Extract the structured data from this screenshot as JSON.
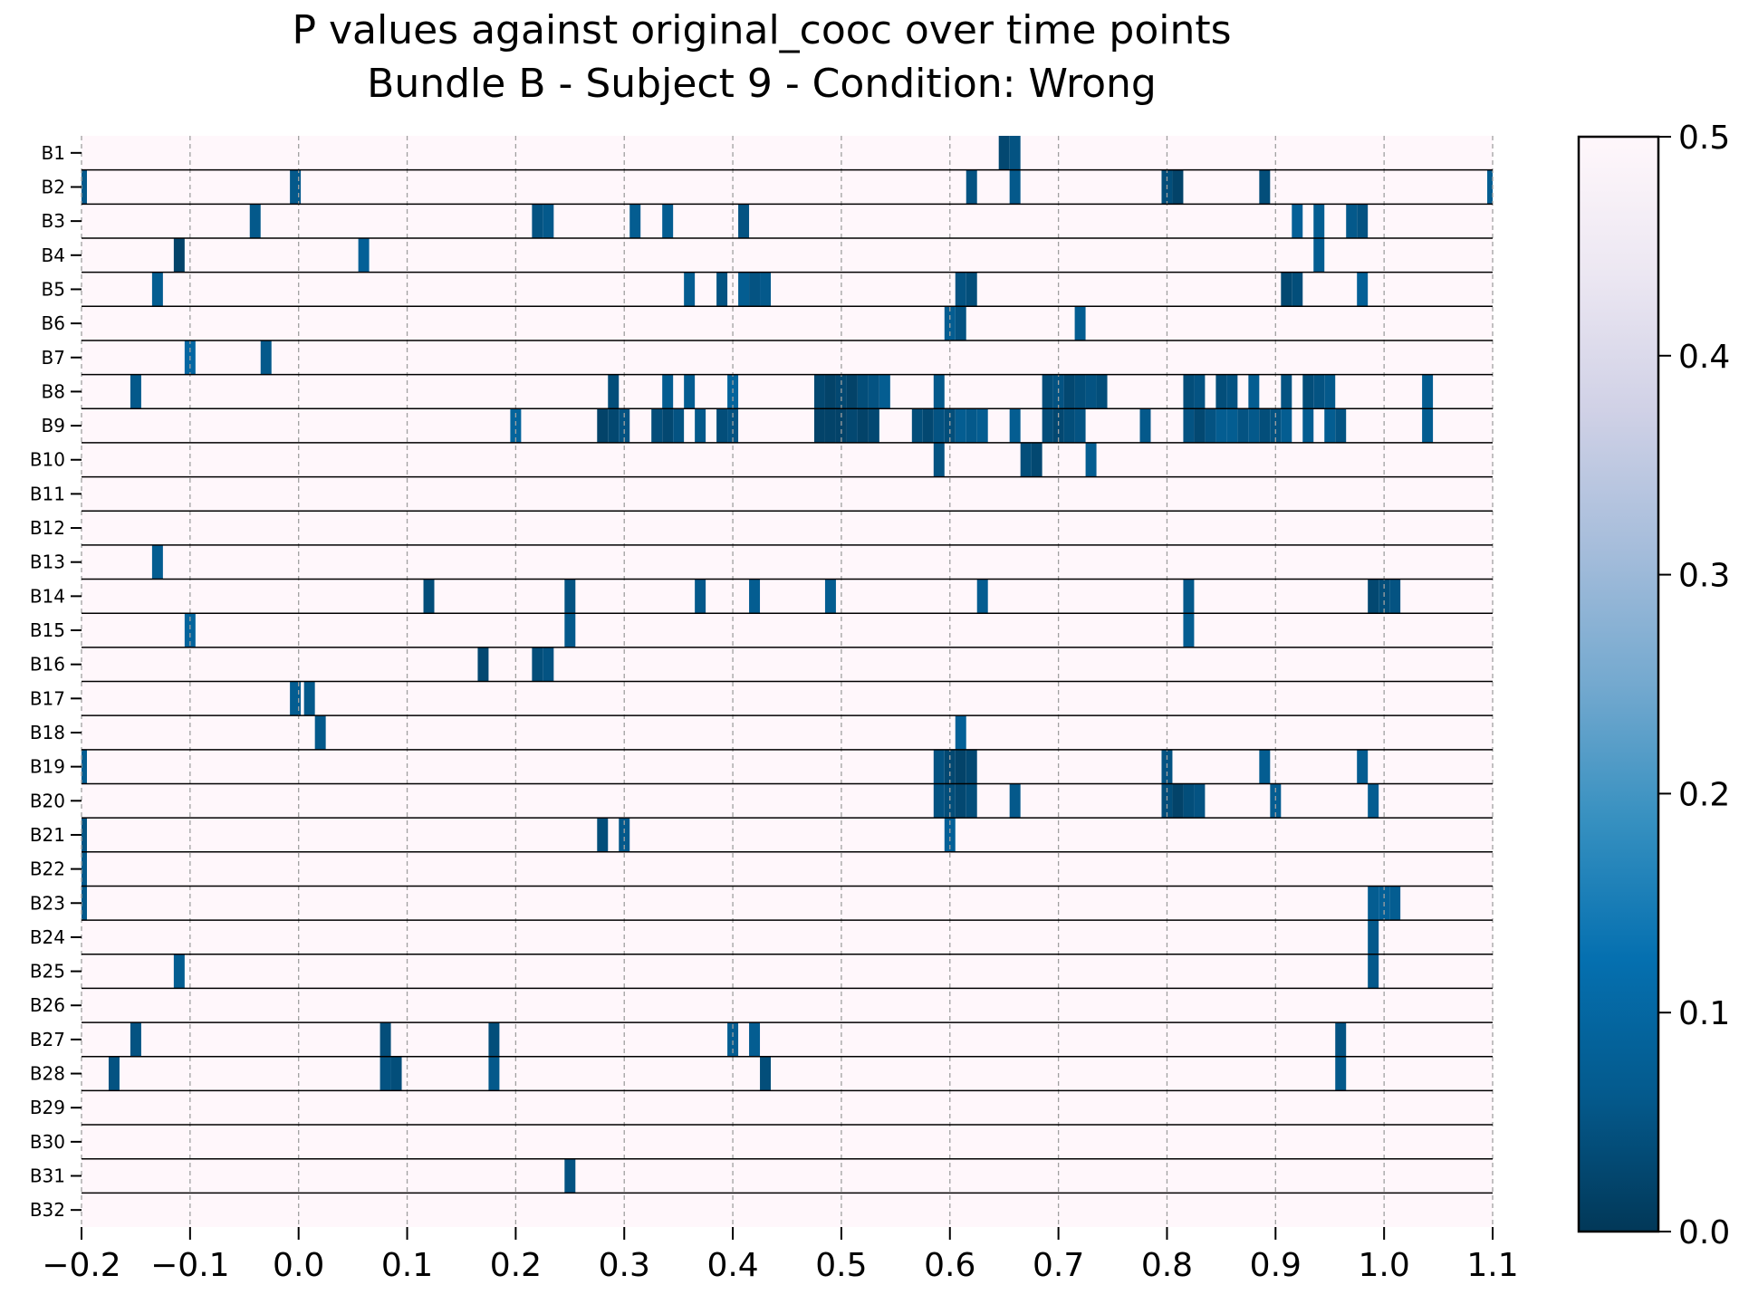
{
  "chart_data": {
    "type": "heatmap",
    "title": "P values against original_cooc over time points",
    "subtitle": "Bundle B - Subject 9 - Condition: Wrong",
    "xlabel": "",
    "ylabel": "",
    "xlim": [
      -0.2,
      1.1
    ],
    "x_ticks": [
      "−0.2",
      "−0.1",
      "0.0",
      "0.1",
      "0.2",
      "0.3",
      "0.4",
      "0.5",
      "0.6",
      "0.7",
      "0.8",
      "0.9",
      "1.0",
      "1.1"
    ],
    "x_tick_values": [
      -0.2,
      -0.1,
      0.0,
      0.1,
      0.2,
      0.3,
      0.4,
      0.5,
      0.6,
      0.7,
      0.8,
      0.9,
      1.0,
      1.1
    ],
    "grid": "vertical dashed lines at x ticks",
    "time_step": 0.01,
    "rows": [
      "B1",
      "B2",
      "B3",
      "B4",
      "B5",
      "B6",
      "B7",
      "B8",
      "B9",
      "B10",
      "B11",
      "B12",
      "B13",
      "B14",
      "B15",
      "B16",
      "B17",
      "B18",
      "B19",
      "B20",
      "B21",
      "B22",
      "B23",
      "B24",
      "B25",
      "B26",
      "B27",
      "B28",
      "B29",
      "B30",
      "B31",
      "B32"
    ],
    "background_value": 0.5,
    "colorbar": {
      "min": 0.0,
      "max": 0.5,
      "ticks": [
        "0.0",
        "0.1",
        "0.2",
        "0.3",
        "0.4",
        "0.5"
      ],
      "tick_values": [
        0.0,
        0.1,
        0.2,
        0.3,
        0.4,
        0.5
      ],
      "colormap": "PuBu_r",
      "colors": [
        "#023858",
        "#045a8d",
        "#0570b0",
        "#3690c0",
        "#74a9cf",
        "#a6bddb",
        "#d0d1e6",
        "#ece7f2",
        "#fff7fb"
      ]
    },
    "cells": [
      {
        "row": "B1",
        "t": 0.65,
        "p": 0.03
      },
      {
        "row": "B1",
        "t": 0.66,
        "p": 0.05
      },
      {
        "row": "B2",
        "t": -0.2,
        "p": 0.06
      },
      {
        "row": "B2",
        "t": -0.003,
        "p": 0.06
      },
      {
        "row": "B2",
        "t": 0.62,
        "p": 0.05
      },
      {
        "row": "B2",
        "t": 0.66,
        "p": 0.06
      },
      {
        "row": "B2",
        "t": 0.8,
        "p": 0.04
      },
      {
        "row": "B2",
        "t": 0.81,
        "p": 0.02
      },
      {
        "row": "B2",
        "t": 0.89,
        "p": 0.04
      },
      {
        "row": "B2",
        "t": 1.1,
        "p": 0.07
      },
      {
        "row": "B3",
        "t": -0.04,
        "p": 0.06
      },
      {
        "row": "B3",
        "t": 0.22,
        "p": 0.05
      },
      {
        "row": "B3",
        "t": 0.23,
        "p": 0.06
      },
      {
        "row": "B3",
        "t": 0.31,
        "p": 0.07
      },
      {
        "row": "B3",
        "t": 0.34,
        "p": 0.07
      },
      {
        "row": "B3",
        "t": 0.41,
        "p": 0.05
      },
      {
        "row": "B3",
        "t": 0.92,
        "p": 0.08
      },
      {
        "row": "B3",
        "t": 0.94,
        "p": 0.07
      },
      {
        "row": "B3",
        "t": 0.97,
        "p": 0.06
      },
      {
        "row": "B3",
        "t": 0.98,
        "p": 0.05
      },
      {
        "row": "B4",
        "t": -0.11,
        "p": 0.02
      },
      {
        "row": "B4",
        "t": 0.06,
        "p": 0.08
      },
      {
        "row": "B4",
        "t": 0.94,
        "p": 0.07
      },
      {
        "row": "B5",
        "t": -0.13,
        "p": 0.07
      },
      {
        "row": "B5",
        "t": 0.36,
        "p": 0.07
      },
      {
        "row": "B5",
        "t": 0.39,
        "p": 0.05
      },
      {
        "row": "B5",
        "t": 0.41,
        "p": 0.07
      },
      {
        "row": "B5",
        "t": 0.42,
        "p": 0.05
      },
      {
        "row": "B5",
        "t": 0.43,
        "p": 0.06
      },
      {
        "row": "B5",
        "t": 0.61,
        "p": 0.05
      },
      {
        "row": "B5",
        "t": 0.62,
        "p": 0.04
      },
      {
        "row": "B5",
        "t": 0.91,
        "p": 0.03
      },
      {
        "row": "B5",
        "t": 0.92,
        "p": 0.04
      },
      {
        "row": "B5",
        "t": 0.98,
        "p": 0.08
      },
      {
        "row": "B6",
        "t": 0.6,
        "p": 0.07
      },
      {
        "row": "B6",
        "t": 0.61,
        "p": 0.05
      },
      {
        "row": "B6",
        "t": 0.72,
        "p": 0.07
      },
      {
        "row": "B7",
        "t": -0.1,
        "p": 0.1
      },
      {
        "row": "B7",
        "t": -0.03,
        "p": 0.06
      },
      {
        "row": "B8",
        "t": -0.15,
        "p": 0.06
      },
      {
        "row": "B8",
        "t": 0.29,
        "p": 0.04
      },
      {
        "row": "B8",
        "t": 0.34,
        "p": 0.07
      },
      {
        "row": "B8",
        "t": 0.36,
        "p": 0.07
      },
      {
        "row": "B8",
        "t": 0.4,
        "p": 0.09
      },
      {
        "row": "B8",
        "t": 0.48,
        "p": 0.03
      },
      {
        "row": "B8",
        "t": 0.49,
        "p": 0.02
      },
      {
        "row": "B8",
        "t": 0.5,
        "p": 0.03
      },
      {
        "row": "B8",
        "t": 0.51,
        "p": 0.02
      },
      {
        "row": "B8",
        "t": 0.52,
        "p": 0.04
      },
      {
        "row": "B8",
        "t": 0.53,
        "p": 0.05
      },
      {
        "row": "B8",
        "t": 0.54,
        "p": 0.07
      },
      {
        "row": "B8",
        "t": 0.59,
        "p": 0.06
      },
      {
        "row": "B8",
        "t": 0.69,
        "p": 0.04
      },
      {
        "row": "B8",
        "t": 0.7,
        "p": 0.05
      },
      {
        "row": "B8",
        "t": 0.71,
        "p": 0.03
      },
      {
        "row": "B8",
        "t": 0.72,
        "p": 0.04
      },
      {
        "row": "B8",
        "t": 0.73,
        "p": 0.05
      },
      {
        "row": "B8",
        "t": 0.74,
        "p": 0.04
      },
      {
        "row": "B8",
        "t": 0.82,
        "p": 0.04
      },
      {
        "row": "B8",
        "t": 0.83,
        "p": 0.05
      },
      {
        "row": "B8",
        "t": 0.85,
        "p": 0.04
      },
      {
        "row": "B8",
        "t": 0.86,
        "p": 0.05
      },
      {
        "row": "B8",
        "t": 0.88,
        "p": 0.07
      },
      {
        "row": "B8",
        "t": 0.91,
        "p": 0.05
      },
      {
        "row": "B8",
        "t": 0.93,
        "p": 0.04
      },
      {
        "row": "B8",
        "t": 0.94,
        "p": 0.05
      },
      {
        "row": "B8",
        "t": 0.95,
        "p": 0.06
      },
      {
        "row": "B8",
        "t": 1.04,
        "p": 0.07
      },
      {
        "row": "B9",
        "t": 0.2,
        "p": 0.09
      },
      {
        "row": "B9",
        "t": 0.28,
        "p": 0.02
      },
      {
        "row": "B9",
        "t": 0.29,
        "p": 0.03
      },
      {
        "row": "B9",
        "t": 0.3,
        "p": 0.05
      },
      {
        "row": "B9",
        "t": 0.33,
        "p": 0.04
      },
      {
        "row": "B9",
        "t": 0.34,
        "p": 0.03
      },
      {
        "row": "B9",
        "t": 0.35,
        "p": 0.05
      },
      {
        "row": "B9",
        "t": 0.37,
        "p": 0.06
      },
      {
        "row": "B9",
        "t": 0.39,
        "p": 0.04
      },
      {
        "row": "B9",
        "t": 0.4,
        "p": 0.05
      },
      {
        "row": "B9",
        "t": 0.48,
        "p": 0.02
      },
      {
        "row": "B9",
        "t": 0.49,
        "p": 0.02
      },
      {
        "row": "B9",
        "t": 0.5,
        "p": 0.02
      },
      {
        "row": "B9",
        "t": 0.51,
        "p": 0.03
      },
      {
        "row": "B9",
        "t": 0.52,
        "p": 0.02
      },
      {
        "row": "B9",
        "t": 0.53,
        "p": 0.03
      },
      {
        "row": "B9",
        "t": 0.57,
        "p": 0.04
      },
      {
        "row": "B9",
        "t": 0.58,
        "p": 0.03
      },
      {
        "row": "B9",
        "t": 0.59,
        "p": 0.05
      },
      {
        "row": "B9",
        "t": 0.6,
        "p": 0.04
      },
      {
        "row": "B9",
        "t": 0.61,
        "p": 0.07
      },
      {
        "row": "B9",
        "t": 0.62,
        "p": 0.06
      },
      {
        "row": "B9",
        "t": 0.63,
        "p": 0.07
      },
      {
        "row": "B9",
        "t": 0.66,
        "p": 0.07
      },
      {
        "row": "B9",
        "t": 0.69,
        "p": 0.04
      },
      {
        "row": "B9",
        "t": 0.7,
        "p": 0.03
      },
      {
        "row": "B9",
        "t": 0.71,
        "p": 0.04
      },
      {
        "row": "B9",
        "t": 0.72,
        "p": 0.05
      },
      {
        "row": "B9",
        "t": 0.78,
        "p": 0.06
      },
      {
        "row": "B9",
        "t": 0.82,
        "p": 0.05
      },
      {
        "row": "B9",
        "t": 0.83,
        "p": 0.03
      },
      {
        "row": "B9",
        "t": 0.84,
        "p": 0.05
      },
      {
        "row": "B9",
        "t": 0.85,
        "p": 0.07
      },
      {
        "row": "B9",
        "t": 0.86,
        "p": 0.07
      },
      {
        "row": "B9",
        "t": 0.87,
        "p": 0.05
      },
      {
        "row": "B9",
        "t": 0.88,
        "p": 0.06
      },
      {
        "row": "B9",
        "t": 0.89,
        "p": 0.04
      },
      {
        "row": "B9",
        "t": 0.9,
        "p": 0.05
      },
      {
        "row": "B9",
        "t": 0.91,
        "p": 0.07
      },
      {
        "row": "B9",
        "t": 0.93,
        "p": 0.07
      },
      {
        "row": "B9",
        "t": 0.95,
        "p": 0.07
      },
      {
        "row": "B9",
        "t": 0.96,
        "p": 0.05
      },
      {
        "row": "B9",
        "t": 1.04,
        "p": 0.07
      },
      {
        "row": "B10",
        "t": 0.59,
        "p": 0.05
      },
      {
        "row": "B10",
        "t": 0.67,
        "p": 0.04
      },
      {
        "row": "B10",
        "t": 0.68,
        "p": 0.03
      },
      {
        "row": "B10",
        "t": 0.73,
        "p": 0.07
      },
      {
        "row": "B13",
        "t": -0.13,
        "p": 0.07
      },
      {
        "row": "B14",
        "t": 0.12,
        "p": 0.04
      },
      {
        "row": "B14",
        "t": 0.25,
        "p": 0.05
      },
      {
        "row": "B14",
        "t": 0.37,
        "p": 0.06
      },
      {
        "row": "B14",
        "t": 0.42,
        "p": 0.07
      },
      {
        "row": "B14",
        "t": 0.49,
        "p": 0.07
      },
      {
        "row": "B14",
        "t": 0.63,
        "p": 0.07
      },
      {
        "row": "B14",
        "t": 0.82,
        "p": 0.06
      },
      {
        "row": "B14",
        "t": 0.99,
        "p": 0.03
      },
      {
        "row": "B14",
        "t": 1.0,
        "p": 0.04
      },
      {
        "row": "B14",
        "t": 1.01,
        "p": 0.05
      },
      {
        "row": "B15",
        "t": -0.1,
        "p": 0.09
      },
      {
        "row": "B15",
        "t": 0.25,
        "p": 0.06
      },
      {
        "row": "B15",
        "t": 0.82,
        "p": 0.07
      },
      {
        "row": "B16",
        "t": 0.17,
        "p": 0.03
      },
      {
        "row": "B16",
        "t": 0.22,
        "p": 0.04
      },
      {
        "row": "B16",
        "t": 0.23,
        "p": 0.05
      },
      {
        "row": "B17",
        "t": -0.003,
        "p": 0.07
      },
      {
        "row": "B17",
        "t": 0.01,
        "p": 0.06
      },
      {
        "row": "B18",
        "t": 0.02,
        "p": 0.06
      },
      {
        "row": "B18",
        "t": 0.61,
        "p": 0.08
      },
      {
        "row": "B19",
        "t": -0.2,
        "p": 0.07
      },
      {
        "row": "B19",
        "t": 0.59,
        "p": 0.05
      },
      {
        "row": "B19",
        "t": 0.6,
        "p": 0.03
      },
      {
        "row": "B19",
        "t": 0.61,
        "p": 0.02
      },
      {
        "row": "B19",
        "t": 0.62,
        "p": 0.03
      },
      {
        "row": "B19",
        "t": 0.8,
        "p": 0.05
      },
      {
        "row": "B19",
        "t": 0.89,
        "p": 0.07
      },
      {
        "row": "B19",
        "t": 0.98,
        "p": 0.07
      },
      {
        "row": "B20",
        "t": 0.59,
        "p": 0.05
      },
      {
        "row": "B20",
        "t": 0.6,
        "p": 0.04
      },
      {
        "row": "B20",
        "t": 0.61,
        "p": 0.03
      },
      {
        "row": "B20",
        "t": 0.62,
        "p": 0.04
      },
      {
        "row": "B20",
        "t": 0.66,
        "p": 0.06
      },
      {
        "row": "B20",
        "t": 0.8,
        "p": 0.04
      },
      {
        "row": "B20",
        "t": 0.81,
        "p": 0.02
      },
      {
        "row": "B20",
        "t": 0.82,
        "p": 0.04
      },
      {
        "row": "B20",
        "t": 0.83,
        "p": 0.05
      },
      {
        "row": "B20",
        "t": 0.9,
        "p": 0.07
      },
      {
        "row": "B20",
        "t": 0.99,
        "p": 0.07
      },
      {
        "row": "B21",
        "t": -0.2,
        "p": 0.05
      },
      {
        "row": "B21",
        "t": 0.28,
        "p": 0.04
      },
      {
        "row": "B21",
        "t": 0.3,
        "p": 0.06
      },
      {
        "row": "B21",
        "t": 0.6,
        "p": 0.08
      },
      {
        "row": "B22",
        "t": -0.2,
        "p": 0.06
      },
      {
        "row": "B23",
        "t": -0.2,
        "p": 0.06
      },
      {
        "row": "B23",
        "t": 0.99,
        "p": 0.07
      },
      {
        "row": "B23",
        "t": 1.0,
        "p": 0.08
      },
      {
        "row": "B23",
        "t": 1.01,
        "p": 0.07
      },
      {
        "row": "B24",
        "t": 0.99,
        "p": 0.06
      },
      {
        "row": "B25",
        "t": -0.11,
        "p": 0.07
      },
      {
        "row": "B25",
        "t": 0.99,
        "p": 0.06
      },
      {
        "row": "B27",
        "t": -0.15,
        "p": 0.05
      },
      {
        "row": "B27",
        "t": 0.08,
        "p": 0.04
      },
      {
        "row": "B27",
        "t": 0.18,
        "p": 0.04
      },
      {
        "row": "B27",
        "t": 0.4,
        "p": 0.07
      },
      {
        "row": "B27",
        "t": 0.42,
        "p": 0.07
      },
      {
        "row": "B27",
        "t": 0.96,
        "p": 0.05
      },
      {
        "row": "B28",
        "t": -0.17,
        "p": 0.05
      },
      {
        "row": "B28",
        "t": 0.08,
        "p": 0.05
      },
      {
        "row": "B28",
        "t": 0.09,
        "p": 0.04
      },
      {
        "row": "B28",
        "t": 0.18,
        "p": 0.06
      },
      {
        "row": "B28",
        "t": 0.43,
        "p": 0.04
      },
      {
        "row": "B28",
        "t": 0.96,
        "p": 0.06
      },
      {
        "row": "B31",
        "t": 0.25,
        "p": 0.05
      }
    ]
  }
}
